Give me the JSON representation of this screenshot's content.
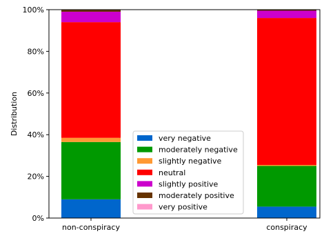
{
  "chart_data": {
    "type": "bar",
    "stacked": true,
    "title": "",
    "xlabel": "",
    "ylabel": "Distribution",
    "ylim": [
      0,
      1
    ],
    "y_tick_values": [
      0,
      0.2,
      0.4,
      0.6,
      0.8,
      1.0
    ],
    "y_tick_labels": [
      "0%",
      "20%",
      "40%",
      "60%",
      "80%",
      "100%"
    ],
    "categories": [
      "non-conspiracy",
      "conspiracy"
    ],
    "grid": false,
    "legend_position": "lower-center",
    "series": [
      {
        "name": "very negative",
        "color": "#0066cc",
        "values": [
          0.09,
          0.055
        ]
      },
      {
        "name": "moderately negative",
        "color": "#009900",
        "values": [
          0.275,
          0.195
        ]
      },
      {
        "name": "slightly negative",
        "color": "#ff9933",
        "values": [
          0.02,
          0.005
        ]
      },
      {
        "name": "neutral",
        "color": "#ff0000",
        "values": [
          0.555,
          0.705
        ]
      },
      {
        "name": "slightly positive",
        "color": "#cc00cc",
        "values": [
          0.05,
          0.035
        ]
      },
      {
        "name": "moderately positive",
        "color": "#663300",
        "values": [
          0.01,
          0.005
        ]
      },
      {
        "name": "very positive",
        "color": "#ff99cc",
        "values": [
          0.0,
          0.0
        ]
      }
    ]
  }
}
